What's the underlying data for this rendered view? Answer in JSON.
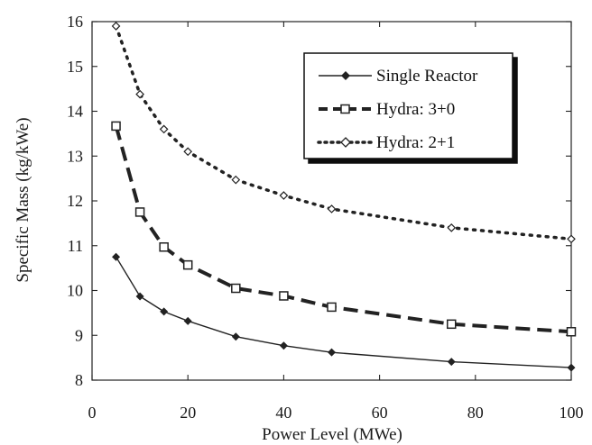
{
  "chart_data": {
    "type": "line",
    "title": "",
    "xlabel": "Power Level (MWe)",
    "ylabel": "Specific Mass (kg/kWe)",
    "xlim": [
      0,
      100
    ],
    "ylim": [
      8,
      16
    ],
    "x_ticks": [
      0,
      20,
      40,
      60,
      80,
      100
    ],
    "y_ticks": [
      8,
      9,
      10,
      11,
      12,
      13,
      14,
      15,
      16
    ],
    "grid": false,
    "legend_position": "top-right",
    "series": [
      {
        "name": "Single Reactor",
        "style": "solid",
        "marker": "filled-diamond",
        "x": [
          5,
          10,
          15,
          20,
          30,
          40,
          50,
          75,
          100
        ],
        "y": [
          10.75,
          9.87,
          9.53,
          9.32,
          8.97,
          8.77,
          8.62,
          8.41,
          8.28
        ]
      },
      {
        "name": "Hydra: 3+0",
        "style": "dashed",
        "marker": "open-square",
        "x": [
          5,
          10,
          15,
          20,
          30,
          40,
          50,
          75,
          100
        ],
        "y": [
          13.67,
          11.75,
          10.97,
          10.57,
          10.05,
          9.88,
          9.63,
          9.25,
          9.08
        ]
      },
      {
        "name": "Hydra: 2+1",
        "style": "dotted",
        "marker": "open-diamond",
        "x": [
          5,
          10,
          15,
          20,
          30,
          40,
          50,
          75,
          100
        ],
        "y": [
          15.9,
          14.38,
          13.6,
          13.1,
          12.47,
          12.12,
          11.82,
          11.4,
          11.15
        ]
      }
    ]
  }
}
